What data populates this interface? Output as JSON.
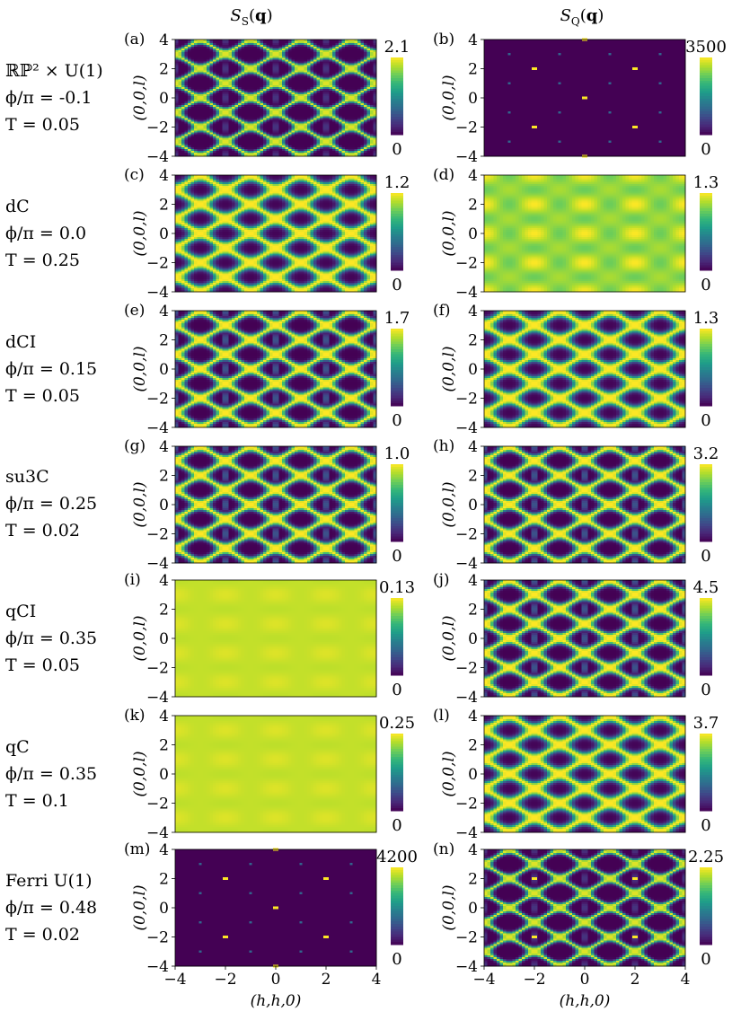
{
  "figure": {
    "column_titles": [
      {
        "sym": "S",
        "sub": "S",
        "arg": "q"
      },
      {
        "sym": "S",
        "sub": "Q",
        "arg": "q"
      }
    ],
    "rows": [
      {
        "label": [
          "ℝℙ² × U(1)",
          "ϕ/π = -0.1",
          "T = 0.05"
        ]
      },
      {
        "label": [
          "dC",
          "ϕ/π = 0.0",
          "T = 0.25"
        ]
      },
      {
        "label": [
          "dCI",
          "ϕ/π = 0.15",
          "T = 0.05"
        ]
      },
      {
        "label": [
          "su3C",
          "ϕ/π = 0.25",
          "T = 0.02"
        ]
      },
      {
        "label": [
          "qCI",
          "ϕ/π = 0.35",
          "T = 0.05"
        ]
      },
      {
        "label": [
          "qC",
          "ϕ/π = 0.35",
          "T = 0.1"
        ]
      },
      {
        "label": [
          "Ferri U(1)",
          "ϕ/π = 0.48",
          "T = 0.02"
        ]
      }
    ],
    "colormap": [
      "#440154",
      "#482878",
      "#3e4989",
      "#31688e",
      "#26828e",
      "#1f9e89",
      "#35b779",
      "#6ece58",
      "#b5de2b",
      "#fde725"
    ]
  },
  "chart_data": [
    {
      "type": "heatmap",
      "panel": "(a)",
      "quantity": "S_S(q)",
      "pattern": "star-lattice-sharp",
      "colorbar": {
        "max": "2.1",
        "min": "0"
      },
      "ylabel": "(0,0,l)",
      "ylim": [
        -4,
        4
      ],
      "xlim": [
        -4,
        4
      ],
      "yticks": [
        "4",
        "2",
        "0",
        "−2",
        "−4"
      ]
    },
    {
      "type": "heatmap",
      "panel": "(b)",
      "quantity": "S_Q(q)",
      "pattern": "bragg-peaks",
      "colorbar": {
        "max": "3500",
        "min": "0"
      },
      "ylabel": "(0,0,l)",
      "ylim": [
        -4,
        4
      ],
      "xlim": [
        -4,
        4
      ],
      "yticks": [
        "4",
        "2",
        "0",
        "−2",
        "−4"
      ],
      "peaks": [
        {
          "h": 0,
          "l": 4
        },
        {
          "h": -2,
          "l": 2
        },
        {
          "h": 2,
          "l": 2
        },
        {
          "h": 0,
          "l": 0
        },
        {
          "h": -2,
          "l": -2
        },
        {
          "h": 2,
          "l": -2
        },
        {
          "h": 0,
          "l": -4
        }
      ]
    },
    {
      "type": "heatmap",
      "panel": "(c)",
      "quantity": "S_S(q)",
      "pattern": "rings",
      "colorbar": {
        "max": "1.2",
        "min": "0"
      },
      "ylabel": "(0,0,l)",
      "ylim": [
        -4,
        4
      ],
      "xlim": [
        -4,
        4
      ],
      "yticks": [
        "4",
        "2",
        "0",
        "−2",
        "−4"
      ]
    },
    {
      "type": "heatmap",
      "panel": "(d)",
      "quantity": "S_Q(q)",
      "pattern": "diffuse-high",
      "colorbar": {
        "max": "1.3",
        "min": "0"
      },
      "ylabel": "(0,0,l)",
      "ylim": [
        -4,
        4
      ],
      "xlim": [
        -4,
        4
      ],
      "yticks": [
        "4",
        "2",
        "0",
        "−2",
        "−4"
      ]
    },
    {
      "type": "heatmap",
      "panel": "(e)",
      "quantity": "S_S(q)",
      "pattern": "star-lattice",
      "colorbar": {
        "max": "1.7",
        "min": "0"
      },
      "ylabel": "(0,0,l)",
      "ylim": [
        -4,
        4
      ],
      "xlim": [
        -4,
        4
      ],
      "yticks": [
        "4",
        "2",
        "0",
        "−2",
        "−4"
      ]
    },
    {
      "type": "heatmap",
      "panel": "(f)",
      "quantity": "S_Q(q)",
      "pattern": "rings",
      "colorbar": {
        "max": "1.3",
        "min": "0"
      },
      "ylabel": "(0,0,l)",
      "ylim": [
        -4,
        4
      ],
      "xlim": [
        -4,
        4
      ],
      "yticks": [
        "4",
        "2",
        "0",
        "−2",
        "−4"
      ]
    },
    {
      "type": "heatmap",
      "panel": "(g)",
      "quantity": "S_S(q)",
      "pattern": "star-lattice",
      "colorbar": {
        "max": "1.0",
        "min": "0"
      },
      "ylabel": "(0,0,l)",
      "ylim": [
        -4,
        4
      ],
      "xlim": [
        -4,
        4
      ],
      "yticks": [
        "4",
        "2",
        "0",
        "−2",
        "−4"
      ]
    },
    {
      "type": "heatmap",
      "panel": "(h)",
      "quantity": "S_Q(q)",
      "pattern": "star-lattice",
      "colorbar": {
        "max": "3.2",
        "min": "0"
      },
      "ylabel": "(0,0,l)",
      "ylim": [
        -4,
        4
      ],
      "xlim": [
        -4,
        4
      ],
      "yticks": [
        "4",
        "2",
        "0",
        "−2",
        "−4"
      ]
    },
    {
      "type": "heatmap",
      "panel": "(i)",
      "quantity": "S_S(q)",
      "pattern": "diffuse-flat",
      "colorbar": {
        "max": "0.13",
        "min": "0"
      },
      "ylabel": "(0,0,l)",
      "ylim": [
        -4,
        4
      ],
      "xlim": [
        -4,
        4
      ],
      "yticks": [
        "4",
        "2",
        "0",
        "−2",
        "−4"
      ]
    },
    {
      "type": "heatmap",
      "panel": "(j)",
      "quantity": "S_Q(q)",
      "pattern": "star-lattice",
      "colorbar": {
        "max": "4.5",
        "min": "0"
      },
      "ylabel": "(0,0,l)",
      "ylim": [
        -4,
        4
      ],
      "xlim": [
        -4,
        4
      ],
      "yticks": [
        "4",
        "2",
        "0",
        "−2",
        "−4"
      ]
    },
    {
      "type": "heatmap",
      "panel": "(k)",
      "quantity": "S_S(q)",
      "pattern": "diffuse-flat",
      "colorbar": {
        "max": "0.25",
        "min": "0"
      },
      "ylabel": "(0,0,l)",
      "ylim": [
        -4,
        4
      ],
      "xlim": [
        -4,
        4
      ],
      "yticks": [
        "4",
        "2",
        "0",
        "−2",
        "−4"
      ]
    },
    {
      "type": "heatmap",
      "panel": "(l)",
      "quantity": "S_Q(q)",
      "pattern": "rings",
      "colorbar": {
        "max": "3.7",
        "min": "0"
      },
      "ylabel": "(0,0,l)",
      "ylim": [
        -4,
        4
      ],
      "xlim": [
        -4,
        4
      ],
      "yticks": [
        "4",
        "2",
        "0",
        "−2",
        "−4"
      ]
    },
    {
      "type": "heatmap",
      "panel": "(m)",
      "quantity": "S_S(q)",
      "pattern": "bragg-peaks",
      "colorbar": {
        "max": "4200",
        "min": "0"
      },
      "ylabel": "(0,0,l)",
      "xlabel": "(h,h,0)",
      "ylim": [
        -4,
        4
      ],
      "xlim": [
        -4,
        4
      ],
      "yticks": [
        "4",
        "2",
        "0",
        "−2",
        "−4"
      ],
      "xticks": [
        "−4",
        "−2",
        "0",
        "2",
        "4"
      ],
      "peaks": [
        {
          "h": 0,
          "l": 4
        },
        {
          "h": -2,
          "l": 2
        },
        {
          "h": 2,
          "l": 2
        },
        {
          "h": 0,
          "l": 0
        },
        {
          "h": -2,
          "l": -2
        },
        {
          "h": 2,
          "l": -2
        },
        {
          "h": 0,
          "l": -4
        }
      ]
    },
    {
      "type": "heatmap",
      "panel": "(n)",
      "quantity": "S_Q(q)",
      "pattern": "star-lattice-sharp",
      "colorbar": {
        "max": "2.25",
        "min": "0"
      },
      "ylabel": "(0,0,l)",
      "xlabel": "(h,h,0)",
      "ylim": [
        -4,
        4
      ],
      "xlim": [
        -4,
        4
      ],
      "yticks": [
        "4",
        "2",
        "0",
        "−2",
        "−4"
      ],
      "xticks": [
        "−4",
        "−2",
        "0",
        "2",
        "4"
      ],
      "peaks": [
        {
          "h": -2,
          "l": 2
        },
        {
          "h": 2,
          "l": 2
        },
        {
          "h": -2,
          "l": -2
        },
        {
          "h": 2,
          "l": -2
        }
      ]
    }
  ]
}
